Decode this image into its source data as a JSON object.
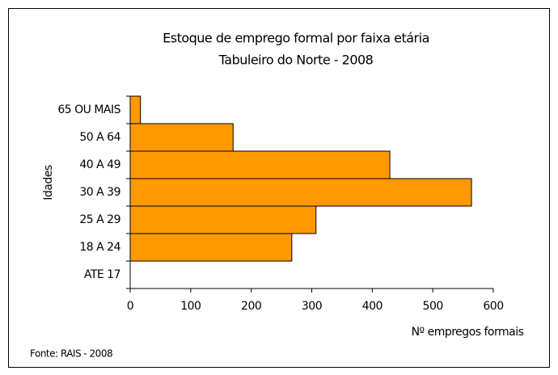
{
  "chart_data": {
    "type": "bar",
    "orientation": "horizontal",
    "title": "Estoque de emprego formal por faixa etária",
    "subtitle": "Tabuleiro do Norte  - 2008",
    "y_label": "Idades",
    "x_label": "Nº empregos formais",
    "source": "Fonte: RAIS - 2008",
    "categories": [
      "65 OU MAIS",
      "50 A 64",
      "40 A 49",
      "30 A 39",
      "25 A 29",
      "18 A 24",
      "ATE 17"
    ],
    "values": [
      17,
      170,
      429,
      564,
      307,
      267,
      0
    ],
    "color": "#ff9900",
    "xlim": [
      0,
      600
    ],
    "xticks": [
      0,
      100,
      200,
      300,
      400,
      500,
      600
    ],
    "grid": false
  }
}
